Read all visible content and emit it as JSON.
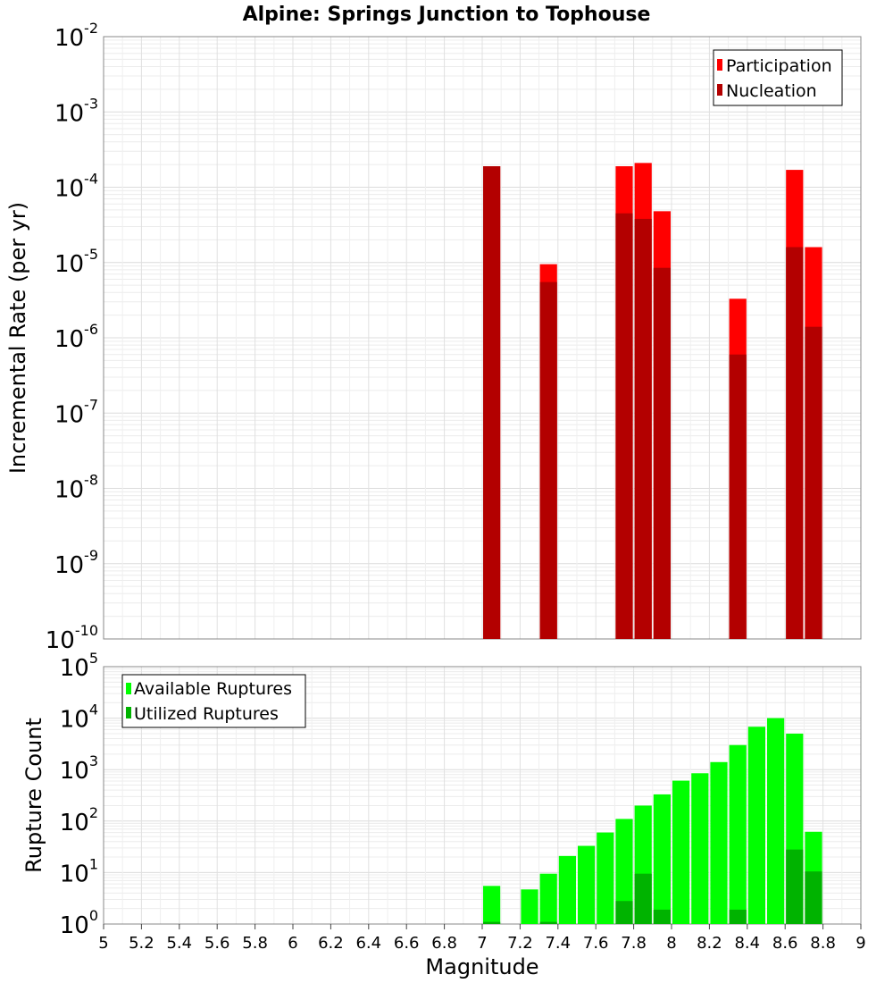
{
  "chart_data": [
    {
      "type": "bar",
      "title": "Alpine: Springs Junction to Tophouse",
      "xlabel": "",
      "ylabel": "Incremental Rate (per yr)",
      "yscale": "log",
      "xlim": [
        5,
        9
      ],
      "ylim": [
        1e-10,
        0.01
      ],
      "legend_position": "top-right",
      "grid": true,
      "series": [
        {
          "name": "Participation",
          "color": "#ff0000",
          "x": [
            7.05,
            7.35,
            7.75,
            7.85,
            7.95,
            8.35,
            8.65,
            8.75
          ],
          "values": [
            0.00019,
            9.5e-06,
            0.00019,
            0.00021,
            4.8e-05,
            3.3e-06,
            0.00017,
            1.6e-05
          ]
        },
        {
          "name": "Nucleation",
          "color": "#b30000",
          "x": [
            7.05,
            7.35,
            7.75,
            7.85,
            7.95,
            8.35,
            8.65,
            8.75
          ],
          "values": [
            0.00019,
            5.5e-06,
            4.5e-05,
            3.8e-05,
            8.5e-06,
            6e-07,
            1.6e-05,
            1.4e-06
          ]
        }
      ]
    },
    {
      "type": "bar",
      "title": "",
      "xlabel": "Magnitude",
      "ylabel": "Rupture Count",
      "yscale": "log",
      "xlim": [
        5,
        9
      ],
      "ylim": [
        1,
        100000
      ],
      "xticks": [
        "5",
        "5.2",
        "5.4",
        "5.6",
        "5.8",
        "6",
        "6.2",
        "6.4",
        "6.6",
        "6.8",
        "7",
        "7.2",
        "7.4",
        "7.6",
        "7.8",
        "8",
        "8.2",
        "8.4",
        "8.6",
        "8.8",
        "9"
      ],
      "legend_position": "top-left",
      "grid": true,
      "series": [
        {
          "name": "Available Ruptures",
          "color": "#00ff00",
          "x": [
            7.05,
            7.25,
            7.35,
            7.45,
            7.55,
            7.65,
            7.75,
            7.85,
            7.95,
            8.05,
            8.15,
            8.25,
            8.35,
            8.45,
            8.55,
            8.65,
            8.75
          ],
          "values": [
            5.5,
            4.7,
            9.5,
            21,
            33,
            60,
            110,
            200,
            330,
            610,
            850,
            1400,
            3000,
            6800,
            10000,
            5000,
            62
          ]
        },
        {
          "name": "Utilized Ruptures",
          "color": "#00b300",
          "x": [
            7.05,
            7.35,
            7.75,
            7.85,
            7.95,
            8.35,
            8.65,
            8.75
          ],
          "values": [
            1.1,
            1.1,
            2.8,
            9.5,
            1.9,
            1.9,
            28,
            10.5
          ]
        }
      ]
    }
  ]
}
